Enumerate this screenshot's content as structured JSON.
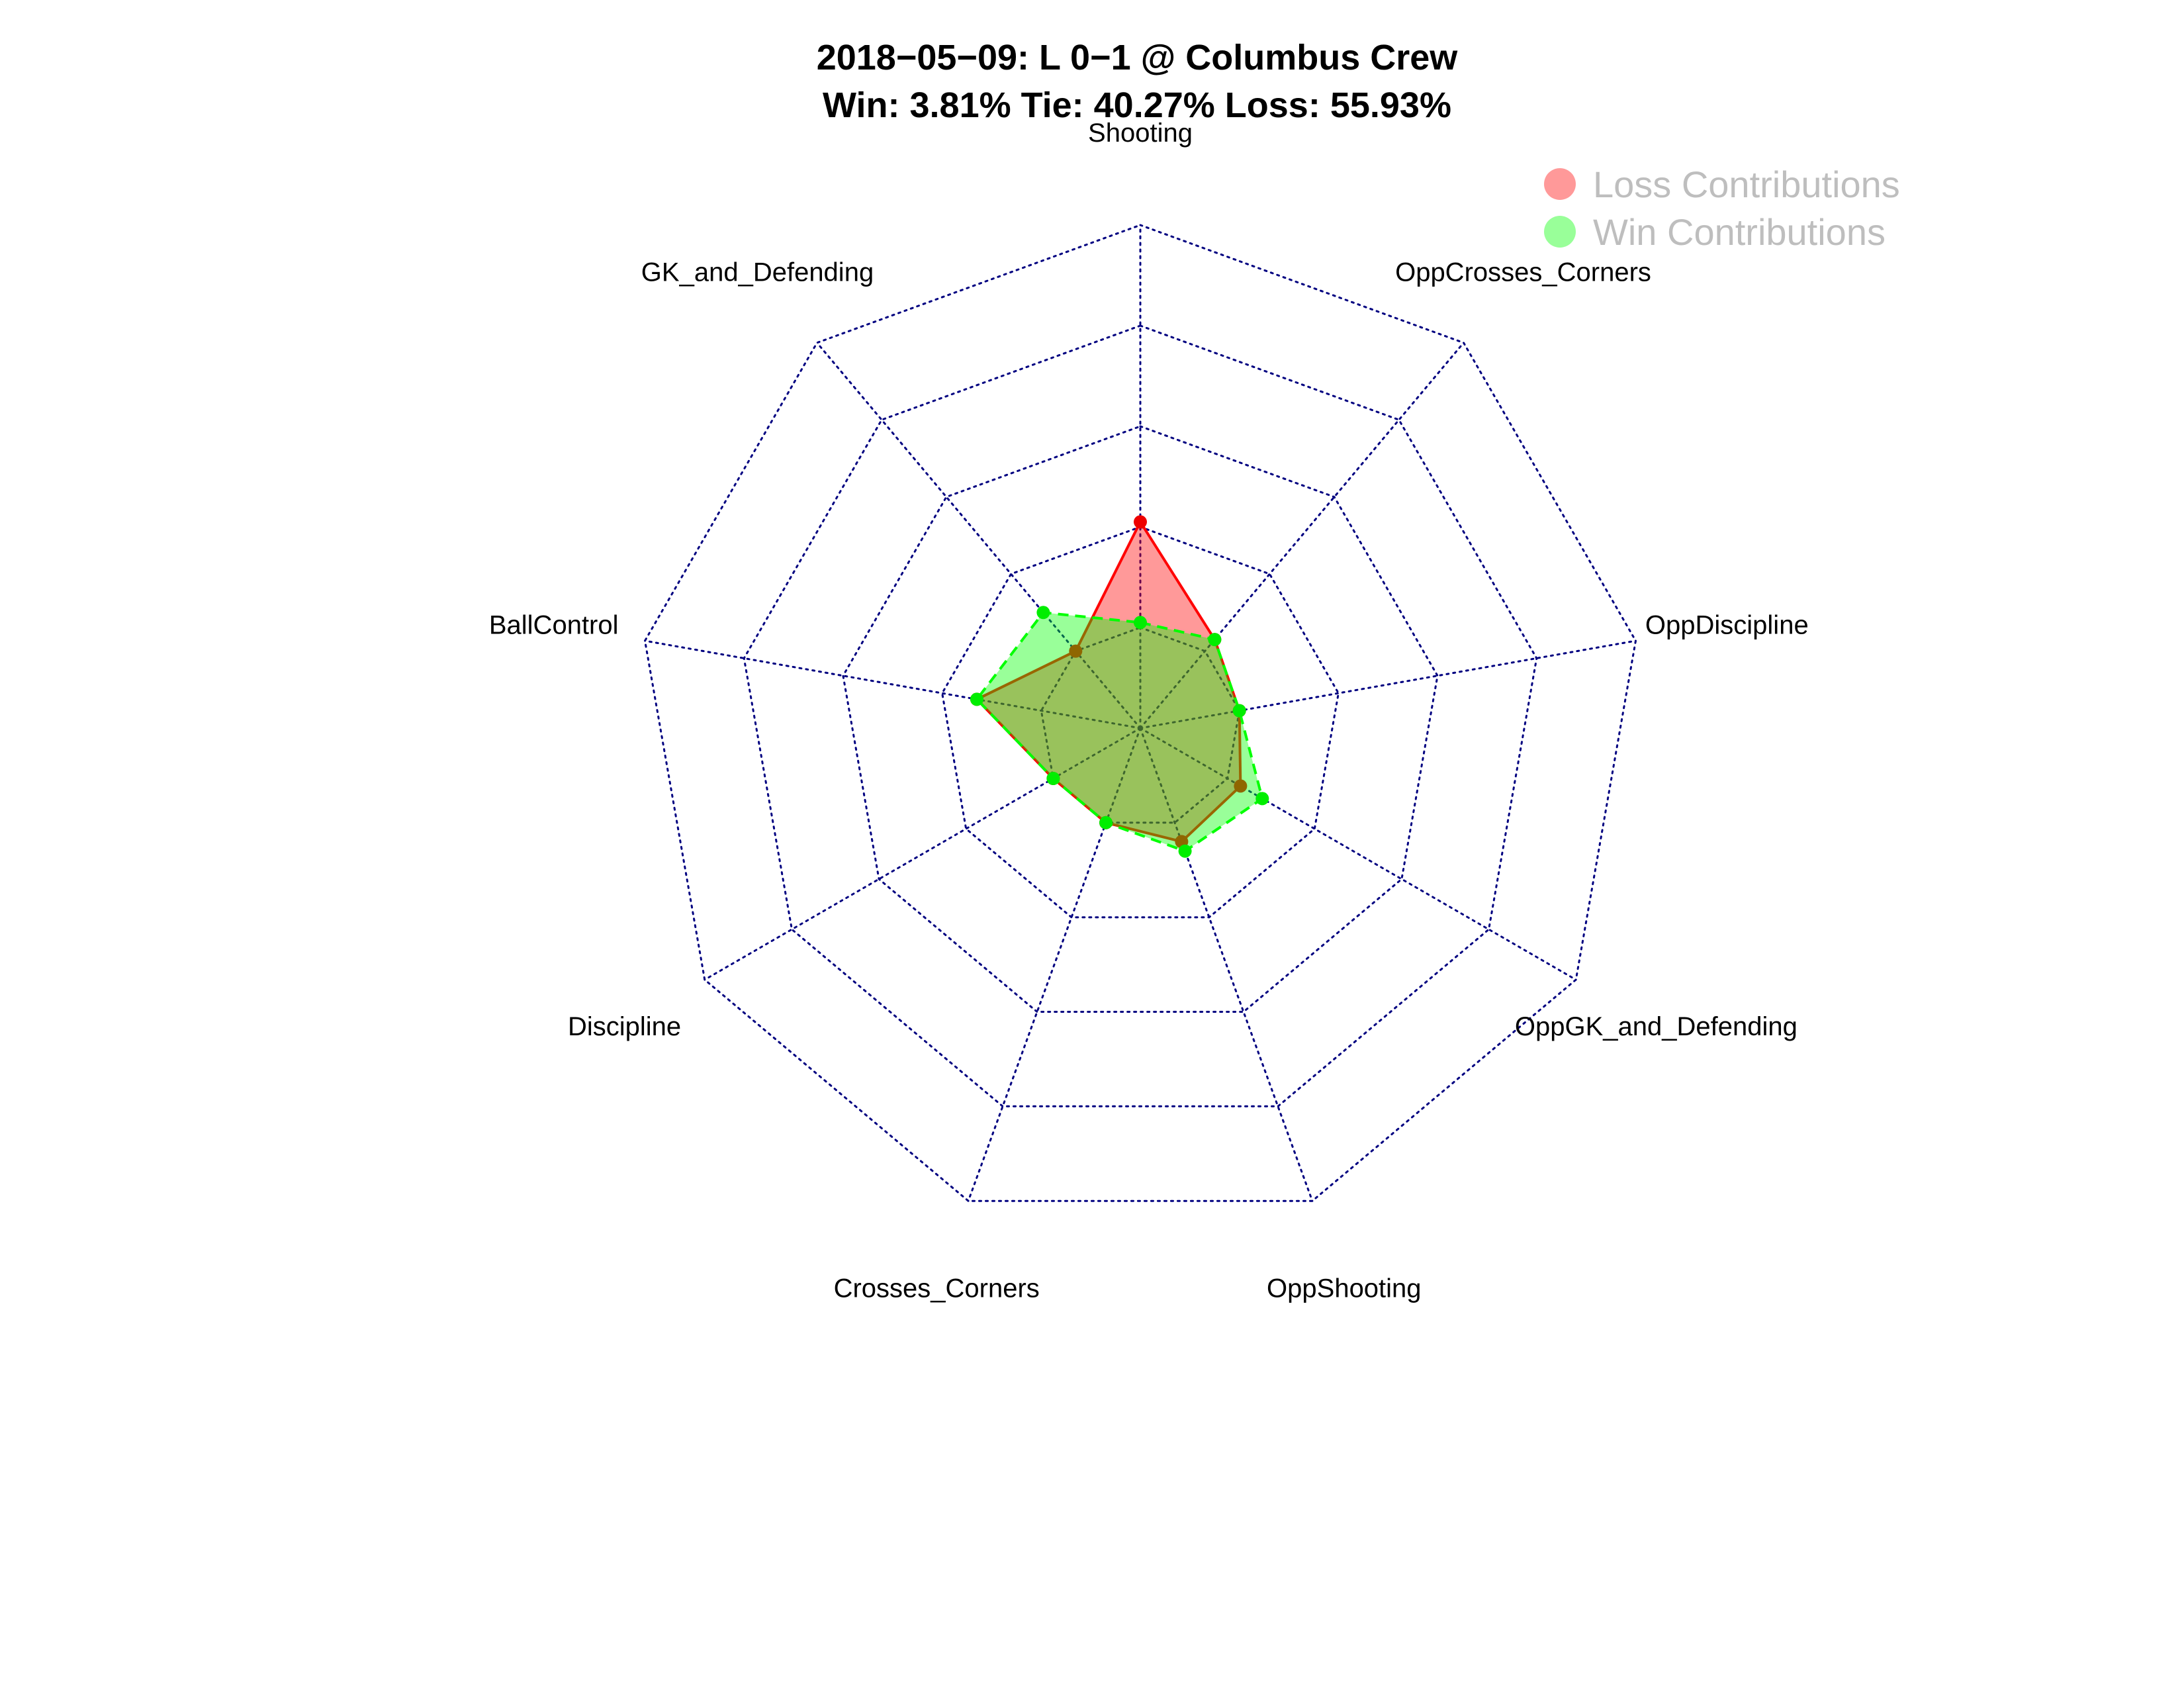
{
  "title_line1": "2018−05−09:  L 0−1   @ Columbus Crew",
  "title_line2": "Win: 3.81% Tie: 40.27% Loss: 55.93%",
  "legend": {
    "loss_label": "Loss Contributions",
    "win_label": "Win Contributions"
  },
  "chart_data": {
    "type": "radar",
    "axes": [
      "Shooting",
      "OppCrosses_Corners",
      "OppDiscipline",
      "OppGK_and_Defending",
      "OppShooting",
      "Crosses_Corners",
      "Discipline",
      "BallControl",
      "GK_and_Defending"
    ],
    "rings": 5,
    "range": [
      0,
      1
    ],
    "grid": true,
    "series": [
      {
        "name": "Loss Contributions",
        "color": "#ff0000",
        "fill": "rgba(255,0,0,0.4)",
        "line_style": "solid",
        "values": [
          0.41,
          0.23,
          0.2,
          0.23,
          0.24,
          0.2,
          0.2,
          0.33,
          0.2
        ]
      },
      {
        "name": "Win Contributions",
        "color": "#00ff00",
        "fill": "rgba(0,255,0,0.4)",
        "line_style": "dashed",
        "values": [
          0.21,
          0.23,
          0.2,
          0.28,
          0.26,
          0.2,
          0.2,
          0.33,
          0.3
        ]
      }
    ],
    "legend_position": "top-right"
  }
}
